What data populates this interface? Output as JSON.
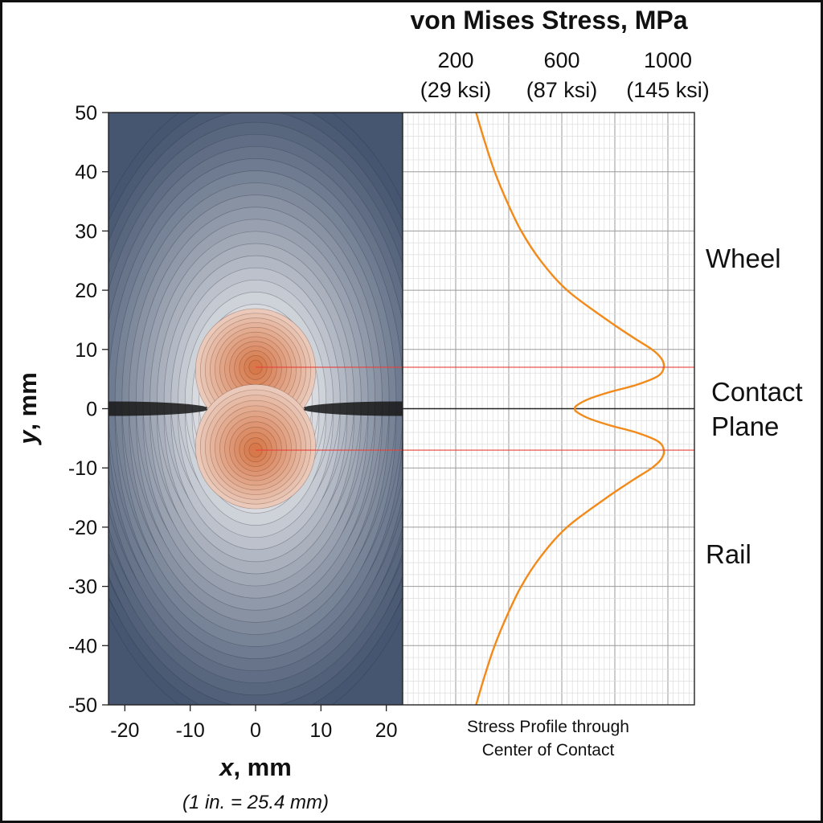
{
  "chart_data": [
    {
      "type": "heatmap",
      "name": "von Mises stress contour",
      "xlabel_var": "x",
      "xlabel_unit": ", mm",
      "ylabel_var": "y",
      "ylabel_unit": ", mm",
      "unit_note": "(1 in. = 25.4 mm)",
      "xlim": [
        -22.5,
        22.5
      ],
      "ylim": [
        -50,
        50
      ],
      "x_ticks": [
        {
          "value": -20,
          "label": "-20"
        },
        {
          "value": -10,
          "label": "-10"
        },
        {
          "value": 0,
          "label": "0"
        },
        {
          "value": 10,
          "label": "10"
        },
        {
          "value": 20,
          "label": "20"
        }
      ],
      "y_ticks": [
        {
          "value": 50,
          "label": "50"
        },
        {
          "value": 40,
          "label": "40"
        },
        {
          "value": 30,
          "label": "30"
        },
        {
          "value": 20,
          "label": "20"
        },
        {
          "value": 10,
          "label": "10"
        },
        {
          "value": 0,
          "label": "0"
        },
        {
          "value": -10,
          "label": "-10"
        },
        {
          "value": -20,
          "label": "-20"
        },
        {
          "value": -30,
          "label": "-30"
        },
        {
          "value": -40,
          "label": "-40"
        },
        {
          "value": -50,
          "label": "-50"
        }
      ],
      "peaks_y": [
        7,
        -7
      ],
      "colors": {
        "low": "#465670",
        "mid": "#f4f4f6",
        "high": "#d7784a",
        "contact": "#151515"
      }
    },
    {
      "type": "line",
      "title": "von Mises Stress, MPa",
      "caption": "Stress Profile through\nCenter of Contact",
      "xlim": [
        0,
        1100
      ],
      "ylim": [
        -50,
        50
      ],
      "stress_ticks": [
        {
          "value": 200,
          "label": "200",
          "sub": "(29 ksi)"
        },
        {
          "value": 600,
          "label": "600",
          "sub": "(87 ksi)"
        },
        {
          "value": 1000,
          "label": "1000",
          "sub": "(145 ksi)"
        }
      ],
      "series": [
        {
          "name": "Stress Profile through Center of Contact",
          "color": "#f28a1a",
          "points": [
            {
              "y": 50,
              "s": 277
            },
            {
              "y": 45,
              "s": 310
            },
            {
              "y": 40,
              "s": 347
            },
            {
              "y": 35,
              "s": 393
            },
            {
              "y": 30,
              "s": 447
            },
            {
              "y": 25,
              "s": 520
            },
            {
              "y": 20,
              "s": 620
            },
            {
              "y": 15,
              "s": 770
            },
            {
              "y": 12,
              "s": 870
            },
            {
              "y": 10,
              "s": 940
            },
            {
              "y": 8.5,
              "s": 975
            },
            {
              "y": 7,
              "s": 985
            },
            {
              "y": 5.5,
              "s": 962
            },
            {
              "y": 4,
              "s": 880
            },
            {
              "y": 2.8,
              "s": 780
            },
            {
              "y": 1.6,
              "s": 700
            },
            {
              "y": 0.5,
              "s": 655
            },
            {
              "y": 0,
              "s": 650
            },
            {
              "y": -0.5,
              "s": 655
            },
            {
              "y": -1.6,
              "s": 700
            },
            {
              "y": -2.8,
              "s": 780
            },
            {
              "y": -4,
              "s": 880
            },
            {
              "y": -5.5,
              "s": 962
            },
            {
              "y": -7,
              "s": 985
            },
            {
              "y": -8.5,
              "s": 975
            },
            {
              "y": -10,
              "s": 940
            },
            {
              "y": -12,
              "s": 870
            },
            {
              "y": -15,
              "s": 770
            },
            {
              "y": -20,
              "s": 620
            },
            {
              "y": -25,
              "s": 520
            },
            {
              "y": -30,
              "s": 447
            },
            {
              "y": -35,
              "s": 393
            },
            {
              "y": -40,
              "s": 347
            },
            {
              "y": -45,
              "s": 310
            },
            {
              "y": -50,
              "s": 277
            }
          ]
        }
      ],
      "peak_markers_y": [
        7,
        -7
      ],
      "marker_color": "#e8413a"
    }
  ],
  "labels": {
    "wheel": "Wheel",
    "contact_plane_1": "Contact",
    "contact_plane_2": "Plane",
    "rail": "Rail"
  }
}
